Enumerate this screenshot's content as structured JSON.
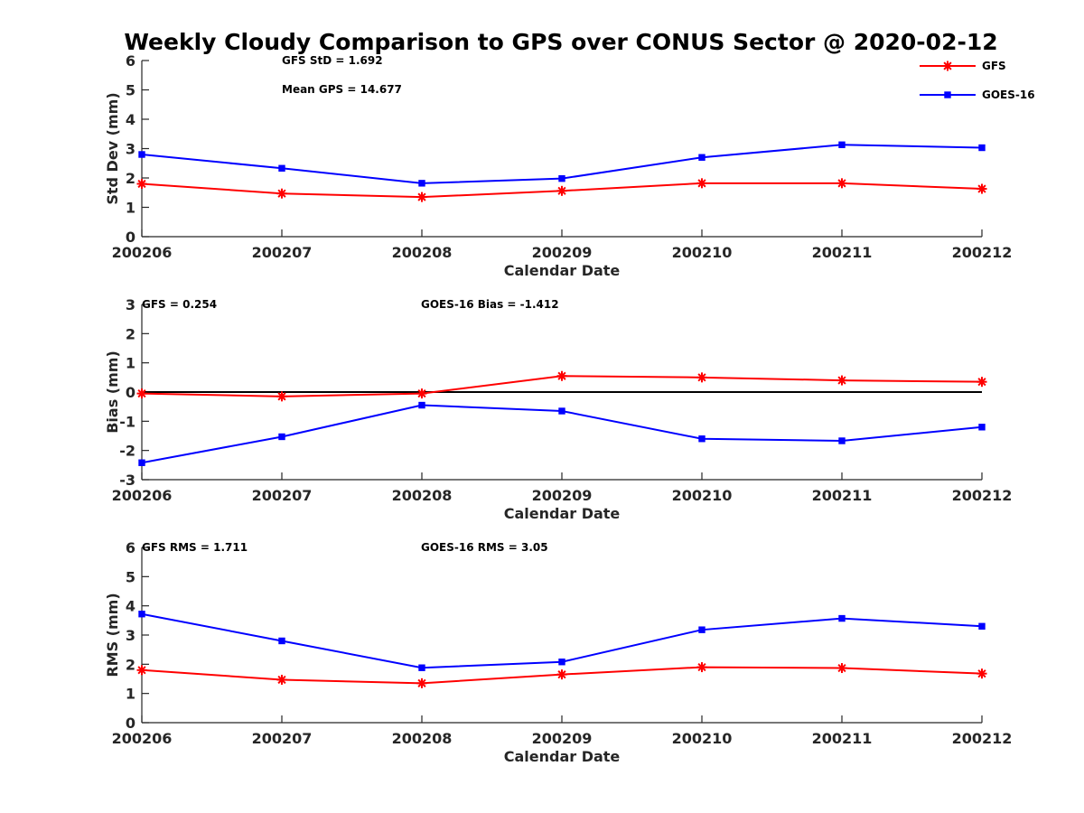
{
  "figure_title": "Weekly Cloudy Comparison to GPS over CONUS Sector @ 2020-02-12",
  "legend": {
    "placement": "top-right",
    "entries": [
      {
        "name": "GFS",
        "color": "#ff0000",
        "marker": "asterisk"
      },
      {
        "name": "GOES-16",
        "color": "#0000ff",
        "marker": "square"
      }
    ]
  },
  "chart_data": [
    {
      "type": "line",
      "title": "",
      "xlabel": "Calendar Date",
      "ylabel": "Std Dev (mm)",
      "categories": [
        "200206",
        "200207",
        "200208",
        "200209",
        "200210",
        "200211",
        "200212"
      ],
      "ylim": [
        0,
        6
      ],
      "yticks": [
        0,
        1,
        2,
        3,
        4,
        5,
        6
      ],
      "grid": false,
      "zero_line": false,
      "annotations": [
        "GFS StD = 1.692",
        "Mean GPS = 14.677"
      ],
      "series": [
        {
          "name": "GFS",
          "color": "#ff0000",
          "marker": "asterisk",
          "values": [
            1.8,
            1.47,
            1.35,
            1.56,
            1.82,
            1.82,
            1.63
          ]
        },
        {
          "name": "GOES-16",
          "color": "#0000ff",
          "marker": "square",
          "values": [
            2.8,
            2.33,
            1.82,
            1.98,
            2.7,
            3.13,
            3.03
          ]
        }
      ]
    },
    {
      "type": "line",
      "title": "",
      "xlabel": "Calendar Date",
      "ylabel": "Bias (mm)",
      "categories": [
        "200206",
        "200207",
        "200208",
        "200209",
        "200210",
        "200211",
        "200212"
      ],
      "ylim": [
        -3,
        3
      ],
      "yticks": [
        -3,
        -2,
        -1,
        0,
        1,
        2,
        3
      ],
      "grid": false,
      "zero_line": true,
      "annotations": [
        "GFS = 0.254",
        "GOES-16 Bias  = -1.412"
      ],
      "series": [
        {
          "name": "GFS",
          "color": "#ff0000",
          "marker": "asterisk",
          "values": [
            -0.05,
            -0.15,
            -0.05,
            0.55,
            0.5,
            0.4,
            0.35
          ]
        },
        {
          "name": "GOES-16",
          "color": "#0000ff",
          "marker": "square",
          "values": [
            -2.42,
            -1.53,
            -0.45,
            -0.65,
            -1.6,
            -1.67,
            -1.2
          ]
        }
      ]
    },
    {
      "type": "line",
      "title": "",
      "xlabel": "Calendar Date",
      "ylabel": "RMS (mm)",
      "categories": [
        "200206",
        "200207",
        "200208",
        "200209",
        "200210",
        "200211",
        "200212"
      ],
      "ylim": [
        0,
        6
      ],
      "yticks": [
        0,
        1,
        2,
        3,
        4,
        5,
        6
      ],
      "grid": false,
      "zero_line": false,
      "annotations": [
        "GFS RMS = 1.711",
        "GOES-16 RMS = 3.05"
      ],
      "series": [
        {
          "name": "GFS",
          "color": "#ff0000",
          "marker": "asterisk",
          "values": [
            1.8,
            1.47,
            1.35,
            1.65,
            1.9,
            1.87,
            1.68
          ]
        },
        {
          "name": "GOES-16",
          "color": "#0000ff",
          "marker": "square",
          "values": [
            3.72,
            2.8,
            1.88,
            2.08,
            3.18,
            3.57,
            3.3
          ]
        }
      ]
    }
  ]
}
